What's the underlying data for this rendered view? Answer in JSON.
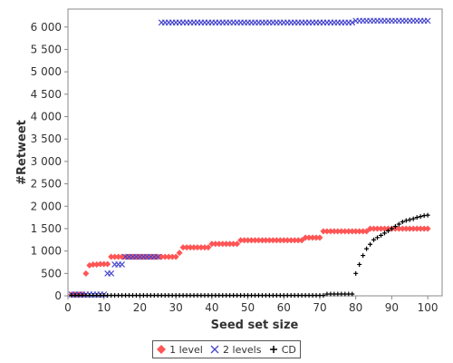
{
  "chart_data": {
    "type": "scatter",
    "title": "",
    "xlabel": "Seed set size",
    "ylabel": "#Retweet",
    "xlim": [
      0,
      104
    ],
    "ylim": [
      0,
      6400
    ],
    "x_ticks": [
      0,
      10,
      20,
      30,
      40,
      50,
      60,
      70,
      80,
      90,
      100
    ],
    "y_ticks": [
      0,
      500,
      1000,
      1500,
      2000,
      2500,
      3000,
      3500,
      4000,
      4500,
      5000,
      5500,
      6000
    ],
    "y_tick_labels": [
      "0",
      "500",
      "1 000",
      "1 500",
      "2 000",
      "2 500",
      "3 000",
      "3 500",
      "4 000",
      "4 500",
      "5 000",
      "5 500",
      "6 000"
    ],
    "grid": false,
    "legend_position": "bottom-center",
    "series": [
      {
        "name": "1 level",
        "marker": "diamond",
        "color": "#ff5555",
        "x": [
          1,
          2,
          3,
          4,
          5,
          6,
          7,
          8,
          9,
          10,
          11,
          12,
          13,
          14,
          15,
          16,
          17,
          18,
          19,
          20,
          21,
          22,
          23,
          24,
          25,
          26,
          27,
          28,
          29,
          30,
          31,
          32,
          33,
          34,
          35,
          36,
          37,
          38,
          39,
          40,
          41,
          42,
          43,
          44,
          45,
          46,
          47,
          48,
          49,
          50,
          51,
          52,
          53,
          54,
          55,
          56,
          57,
          58,
          59,
          60,
          61,
          62,
          63,
          64,
          65,
          66,
          67,
          68,
          69,
          70,
          71,
          72,
          73,
          74,
          75,
          76,
          77,
          78,
          79,
          80,
          81,
          82,
          83,
          84,
          85,
          86,
          87,
          88,
          89,
          90,
          91,
          92,
          93,
          94,
          95,
          96,
          97,
          98,
          99,
          100
        ],
        "y": [
          30,
          30,
          30,
          30,
          500,
          680,
          700,
          700,
          710,
          710,
          710,
          870,
          870,
          870,
          870,
          870,
          870,
          870,
          870,
          870,
          870,
          870,
          870,
          870,
          870,
          870,
          870,
          870,
          870,
          870,
          960,
          1080,
          1080,
          1080,
          1080,
          1080,
          1080,
          1080,
          1080,
          1160,
          1160,
          1160,
          1160,
          1160,
          1160,
          1160,
          1160,
          1240,
          1240,
          1240,
          1240,
          1240,
          1240,
          1240,
          1240,
          1240,
          1240,
          1240,
          1240,
          1240,
          1240,
          1240,
          1240,
          1240,
          1240,
          1300,
          1300,
          1300,
          1300,
          1300,
          1440,
          1440,
          1440,
          1440,
          1440,
          1440,
          1440,
          1440,
          1440,
          1440,
          1440,
          1440,
          1440,
          1500,
          1500,
          1500,
          1500,
          1500,
          1500,
          1500,
          1500,
          1500,
          1500,
          1500,
          1500,
          1500,
          1500,
          1500,
          1500,
          1500
        ]
      },
      {
        "name": "2 levels",
        "marker": "x",
        "color": "#4444cc",
        "x": [
          1,
          2,
          3,
          4,
          5,
          6,
          7,
          8,
          9,
          10,
          11,
          12,
          13,
          14,
          15,
          16,
          17,
          18,
          19,
          20,
          21,
          22,
          23,
          24,
          25,
          26,
          27,
          28,
          29,
          30,
          31,
          32,
          33,
          34,
          35,
          36,
          37,
          38,
          39,
          40,
          41,
          42,
          43,
          44,
          45,
          46,
          47,
          48,
          49,
          50,
          51,
          52,
          53,
          54,
          55,
          56,
          57,
          58,
          59,
          60,
          61,
          62,
          63,
          64,
          65,
          66,
          67,
          68,
          69,
          70,
          71,
          72,
          73,
          74,
          75,
          76,
          77,
          78,
          79,
          80,
          81,
          82,
          83,
          84,
          85,
          86,
          87,
          88,
          89,
          90,
          91,
          92,
          93,
          94,
          95,
          96,
          97,
          98,
          99,
          100
        ],
        "y": [
          30,
          30,
          30,
          30,
          30,
          30,
          30,
          30,
          30,
          30,
          500,
          500,
          700,
          700,
          700,
          870,
          870,
          870,
          870,
          870,
          870,
          870,
          870,
          870,
          870,
          6100,
          6100,
          6100,
          6100,
          6100,
          6100,
          6100,
          6100,
          6100,
          6100,
          6100,
          6100,
          6100,
          6100,
          6100,
          6100,
          6100,
          6100,
          6100,
          6100,
          6100,
          6100,
          6100,
          6100,
          6100,
          6100,
          6100,
          6100,
          6100,
          6100,
          6100,
          6100,
          6100,
          6100,
          6100,
          6100,
          6100,
          6100,
          6100,
          6100,
          6100,
          6100,
          6100,
          6100,
          6100,
          6100,
          6100,
          6100,
          6100,
          6100,
          6100,
          6100,
          6100,
          6100,
          6140,
          6140,
          6140,
          6140,
          6140,
          6140,
          6140,
          6140,
          6140,
          6140,
          6140,
          6140,
          6140,
          6140,
          6140,
          6140,
          6140,
          6140,
          6140,
          6140,
          6140
        ]
      },
      {
        "name": "CD",
        "marker": "plus",
        "color": "#000000",
        "x": [
          1,
          2,
          3,
          4,
          5,
          6,
          7,
          8,
          9,
          10,
          11,
          12,
          13,
          14,
          15,
          16,
          17,
          18,
          19,
          20,
          21,
          22,
          23,
          24,
          25,
          26,
          27,
          28,
          29,
          30,
          31,
          32,
          33,
          34,
          35,
          36,
          37,
          38,
          39,
          40,
          41,
          42,
          43,
          44,
          45,
          46,
          47,
          48,
          49,
          50,
          51,
          52,
          53,
          54,
          55,
          56,
          57,
          58,
          59,
          60,
          61,
          62,
          63,
          64,
          65,
          66,
          67,
          68,
          69,
          70,
          71,
          72,
          73,
          74,
          75,
          76,
          77,
          78,
          79,
          80,
          81,
          82,
          83,
          84,
          85,
          86,
          87,
          88,
          89,
          90,
          91,
          92,
          93,
          94,
          95,
          96,
          97,
          98,
          99,
          100
        ],
        "y": [
          10,
          10,
          10,
          10,
          10,
          10,
          10,
          10,
          10,
          10,
          10,
          10,
          10,
          10,
          10,
          10,
          10,
          10,
          10,
          10,
          10,
          10,
          10,
          10,
          10,
          10,
          10,
          10,
          10,
          10,
          10,
          10,
          10,
          10,
          10,
          10,
          10,
          10,
          10,
          10,
          10,
          10,
          10,
          10,
          10,
          10,
          10,
          10,
          10,
          10,
          10,
          10,
          10,
          10,
          10,
          10,
          10,
          10,
          10,
          10,
          10,
          10,
          10,
          10,
          10,
          10,
          10,
          10,
          10,
          10,
          10,
          40,
          40,
          40,
          40,
          40,
          40,
          40,
          40,
          500,
          700,
          900,
          1050,
          1150,
          1250,
          1300,
          1350,
          1400,
          1450,
          1500,
          1550,
          1600,
          1650,
          1680,
          1700,
          1720,
          1750,
          1770,
          1790,
          1800
        ]
      }
    ]
  }
}
